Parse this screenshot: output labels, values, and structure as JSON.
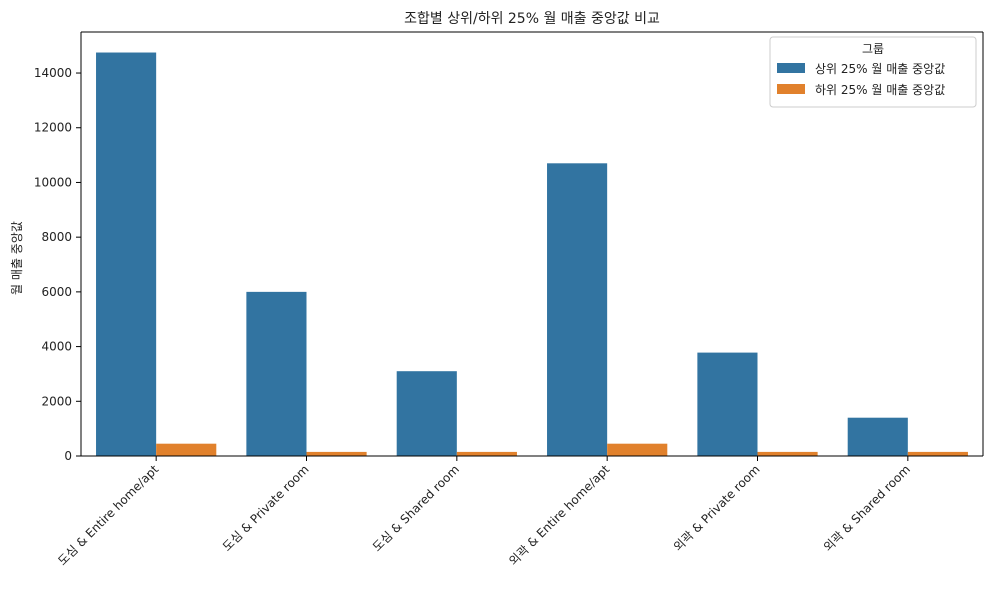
{
  "chart_data": {
    "type": "bar",
    "title": "조합별 상위/하위 25% 월 매출 중앙값 비교",
    "xlabel": "",
    "ylabel": "월 매출 중앙값",
    "categories": [
      "도심 & Entire home/apt",
      "도심 & Private room",
      "도심 & Shared room",
      "외곽 & Entire home/apt",
      "외곽 & Private room",
      "외곽 & Shared room"
    ],
    "series": [
      {
        "name": "상위 25% 월 매출 중앙값",
        "color": "#3274a1",
        "values": [
          14750,
          6000,
          3100,
          10700,
          3780,
          1400
        ]
      },
      {
        "name": "하위 25% 월 매출 중앙값",
        "color": "#e1812c",
        "values": [
          450,
          150,
          150,
          450,
          150,
          150
        ]
      }
    ],
    "ylim": [
      0,
      15500
    ],
    "yticks": [
      0,
      2000,
      4000,
      6000,
      8000,
      10000,
      12000,
      14000
    ],
    "legend": {
      "title": "그룹",
      "placement": "top-right"
    },
    "grid": false
  }
}
